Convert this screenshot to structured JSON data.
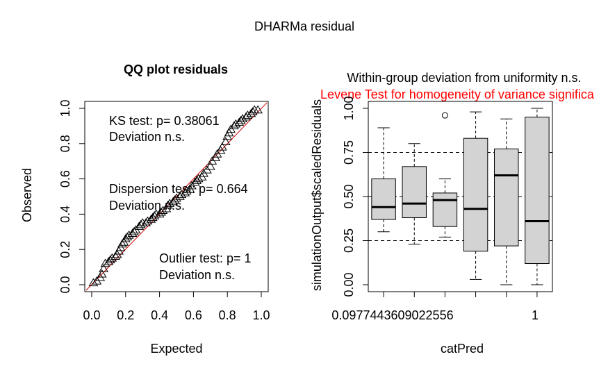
{
  "figure_title": "DHARMa residual",
  "chart_data": [
    {
      "type": "scatter",
      "title": "QQ plot residuals",
      "xlabel": "Expected",
      "ylabel": "Observed",
      "xlim": [
        0,
        1
      ],
      "ylim": [
        0,
        1
      ],
      "x_ticks": [
        "0.0",
        "0.2",
        "0.4",
        "0.6",
        "0.8",
        "1.0"
      ],
      "y_ticks": [
        "0.0",
        "0.2",
        "0.4",
        "0.6",
        "0.8",
        "1.0"
      ],
      "reference_line": {
        "from": [
          0,
          0
        ],
        "to": [
          1,
          1
        ],
        "color": "#cc0000"
      },
      "marker": "triangle",
      "annotations": [
        {
          "line1": "KS test: p= 0.38061",
          "line2": "Deviation  n.s."
        },
        {
          "line1": "Dispersion test: p= 0.664",
          "line2": "Deviation  n.s."
        },
        {
          "line1": "Outlier test: p= 1",
          "line2": "Deviation  n.s."
        }
      ],
      "points": [
        [
          0.01,
          0.01
        ],
        [
          0.03,
          0.02
        ],
        [
          0.05,
          0.04
        ],
        [
          0.06,
          0.06
        ],
        [
          0.07,
          0.09
        ],
        [
          0.08,
          0.12
        ],
        [
          0.1,
          0.13
        ],
        [
          0.11,
          0.14
        ],
        [
          0.12,
          0.15
        ],
        [
          0.14,
          0.16
        ],
        [
          0.15,
          0.17
        ],
        [
          0.16,
          0.19
        ],
        [
          0.17,
          0.21
        ],
        [
          0.18,
          0.23
        ],
        [
          0.19,
          0.24
        ],
        [
          0.2,
          0.26
        ],
        [
          0.21,
          0.27
        ],
        [
          0.22,
          0.28
        ],
        [
          0.24,
          0.29
        ],
        [
          0.25,
          0.3
        ],
        [
          0.26,
          0.31
        ],
        [
          0.28,
          0.33
        ],
        [
          0.29,
          0.34
        ],
        [
          0.3,
          0.35
        ],
        [
          0.32,
          0.35
        ],
        [
          0.33,
          0.36
        ],
        [
          0.35,
          0.37
        ],
        [
          0.36,
          0.38
        ],
        [
          0.37,
          0.39
        ],
        [
          0.38,
          0.4
        ],
        [
          0.4,
          0.4
        ],
        [
          0.41,
          0.41
        ],
        [
          0.42,
          0.42
        ],
        [
          0.44,
          0.43
        ],
        [
          0.45,
          0.45
        ],
        [
          0.46,
          0.46
        ],
        [
          0.48,
          0.47
        ],
        [
          0.49,
          0.48
        ],
        [
          0.5,
          0.49
        ],
        [
          0.52,
          0.5
        ],
        [
          0.53,
          0.51
        ],
        [
          0.55,
          0.52
        ],
        [
          0.56,
          0.53
        ],
        [
          0.58,
          0.54
        ],
        [
          0.59,
          0.56
        ],
        [
          0.61,
          0.58
        ],
        [
          0.62,
          0.59
        ],
        [
          0.63,
          0.6
        ],
        [
          0.65,
          0.61
        ],
        [
          0.66,
          0.63
        ],
        [
          0.68,
          0.65
        ],
        [
          0.7,
          0.67
        ],
        [
          0.71,
          0.7
        ],
        [
          0.73,
          0.72
        ],
        [
          0.74,
          0.74
        ],
        [
          0.76,
          0.76
        ],
        [
          0.77,
          0.78
        ],
        [
          0.79,
          0.81
        ],
        [
          0.8,
          0.84
        ],
        [
          0.81,
          0.86
        ],
        [
          0.82,
          0.88
        ],
        [
          0.84,
          0.9
        ],
        [
          0.85,
          0.91
        ],
        [
          0.87,
          0.92
        ],
        [
          0.88,
          0.93
        ],
        [
          0.89,
          0.94
        ],
        [
          0.91,
          0.95
        ],
        [
          0.92,
          0.96
        ],
        [
          0.94,
          0.97
        ],
        [
          0.95,
          0.98
        ],
        [
          0.96,
          0.99
        ],
        [
          0.98,
          0.99
        ]
      ]
    },
    {
      "type": "box",
      "title_line1": "Within-group deviation from uniformity n.s.",
      "title_line2": "Levene Test for homogeneity of variance significa",
      "title_line2_color": "#ff0000",
      "xlabel": "catPred",
      "ylabel": "simulationOutput$scaledResiduals",
      "ylim": [
        0,
        1
      ],
      "y_ticks": [
        "0.00",
        "0.25",
        "0.50",
        "0.75",
        "1.00"
      ],
      "x_tick_labels": [
        "0.0977443609022556",
        "1"
      ],
      "reference_lines": [
        0.25,
        0.5,
        0.75
      ],
      "boxes": [
        {
          "whisker_low": 0.3,
          "q1": 0.37,
          "median": 0.44,
          "q3": 0.6,
          "whisker_high": 0.89,
          "outliers": []
        },
        {
          "whisker_low": 0.23,
          "q1": 0.38,
          "median": 0.46,
          "q3": 0.67,
          "whisker_high": 0.8,
          "outliers": []
        },
        {
          "whisker_low": 0.27,
          "q1": 0.33,
          "median": 0.48,
          "q3": 0.52,
          "whisker_high": 0.6,
          "outliers": [
            0.96
          ]
        },
        {
          "whisker_low": 0.03,
          "q1": 0.19,
          "median": 0.43,
          "q3": 0.83,
          "whisker_high": 0.98,
          "outliers": []
        },
        {
          "whisker_low": 0.0,
          "q1": 0.22,
          "median": 0.62,
          "q3": 0.77,
          "whisker_high": 0.94,
          "outliers": []
        },
        {
          "whisker_low": 0.0,
          "q1": 0.12,
          "median": 0.36,
          "q3": 0.95,
          "whisker_high": 1.0,
          "outliers": []
        }
      ]
    }
  ]
}
